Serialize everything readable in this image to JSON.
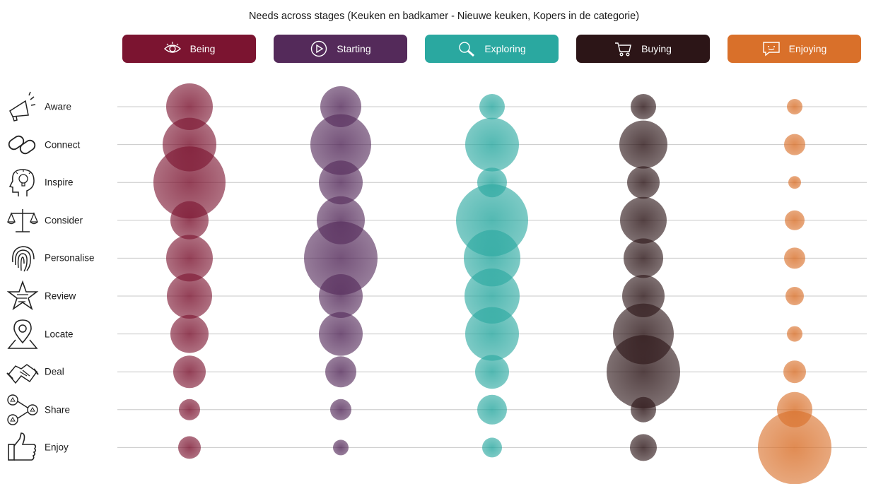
{
  "chart_data": {
    "type": "bubble",
    "title": "Needs across stages (Keuken en badkamer - Nieuwe keuken, Kopers in de categorie)",
    "stages": [
      {
        "label": "Being",
        "icon": "eye-icon",
        "color": "#7b1430"
      },
      {
        "label": "Starting",
        "icon": "play-icon",
        "color": "#542a5a"
      },
      {
        "label": "Exploring",
        "icon": "magnifier-icon",
        "color": "#2aa8a0"
      },
      {
        "label": "Buying",
        "icon": "cart-icon",
        "color": "#2c1517"
      },
      {
        "label": "Enjoying",
        "icon": "chat-icon",
        "color": "#d9702a"
      }
    ],
    "needs": [
      {
        "label": "Aware",
        "icon": "megaphone-icon"
      },
      {
        "label": "Connect",
        "icon": "link-icon"
      },
      {
        "label": "Inspire",
        "icon": "lightbulb-head-icon"
      },
      {
        "label": "Consider",
        "icon": "scale-icon"
      },
      {
        "label": "Personalise",
        "icon": "fingerprint-icon"
      },
      {
        "label": "Review",
        "icon": "star-icon"
      },
      {
        "label": "Locate",
        "icon": "map-pin-icon"
      },
      {
        "label": "Deal",
        "icon": "handshake-icon"
      },
      {
        "label": "Share",
        "icon": "share-icon"
      },
      {
        "label": "Enjoy",
        "icon": "thumbs-up-icon"
      }
    ],
    "series": [
      {
        "name": "Being",
        "values": [
          33,
          38,
          51,
          27,
          33,
          32,
          27,
          23,
          15,
          16
        ]
      },
      {
        "name": "Starting",
        "values": [
          29,
          43,
          31,
          34,
          52,
          31,
          31,
          22,
          15,
          11
        ]
      },
      {
        "name": "Exploring",
        "values": [
          18,
          38,
          21,
          51,
          40,
          39,
          38,
          24,
          21,
          14
        ]
      },
      {
        "name": "Buying",
        "values": [
          18,
          34,
          23,
          33,
          28,
          30,
          43,
          52,
          18,
          19
        ]
      },
      {
        "name": "Enjoying",
        "values": [
          11,
          15,
          9,
          14,
          15,
          13,
          11,
          16,
          25,
          52
        ]
      }
    ],
    "grid": true,
    "legend": "top"
  }
}
